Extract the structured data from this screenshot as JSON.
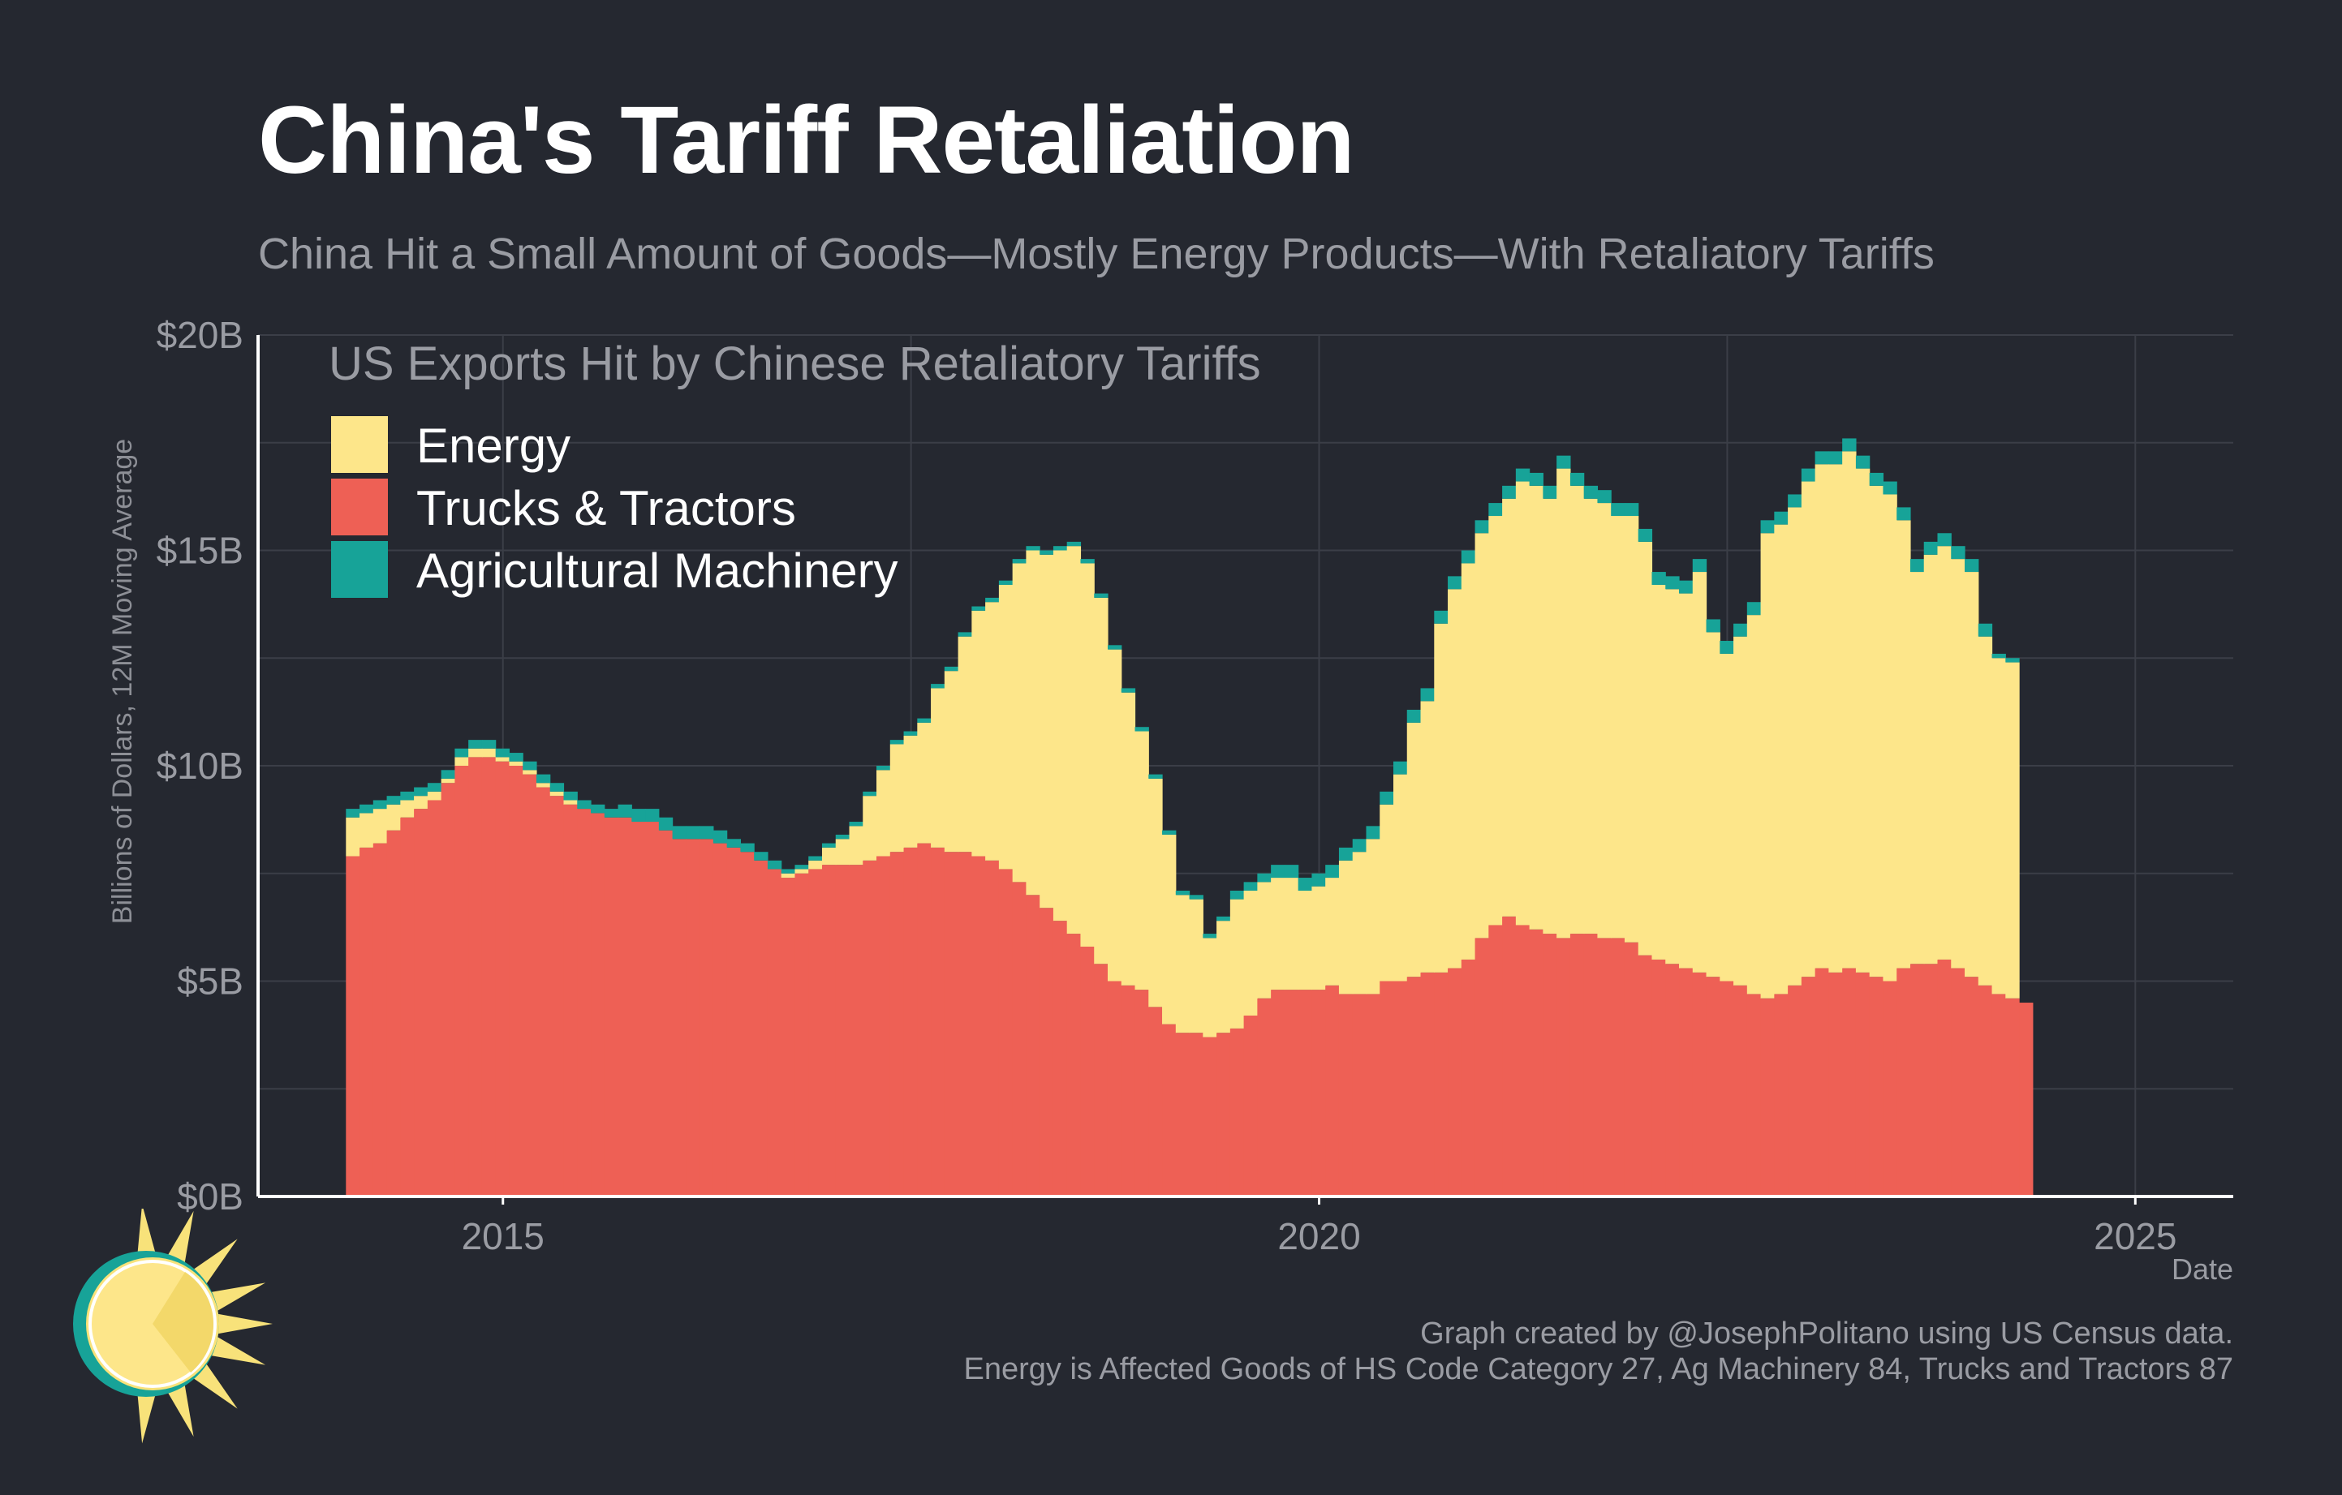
{
  "header": {
    "title": "China's Tariff Retaliation",
    "subtitle": "China Hit a Small Amount of Goods—Mostly Energy Products—With Retaliatory Tariffs"
  },
  "footer": {
    "credit": "Graph created by @JosephPolitano using US Census data.",
    "note": "Energy is Affected Goods of HS Code Category 27, Ag Machinery 84, Trucks and Tractors 87"
  },
  "logo": {
    "icon": "sun-logo-icon",
    "colors": {
      "sun": "#f8e27a",
      "ring": "#17a398"
    }
  },
  "chart_data": {
    "type": "bar",
    "stacked": true,
    "legend_title": "US Exports Hit by Chinese Retaliatory Tariffs",
    "legend_position": "top-left",
    "xlabel": "Date",
    "ylabel": "Billions of Dollars, 12M Moving Average",
    "ylim": [
      0,
      20
    ],
    "y_ticks": [
      0,
      5,
      10,
      15,
      20
    ],
    "y_tick_labels": [
      "$0B",
      "$5B",
      "$10B",
      "$15B",
      "$20B"
    ],
    "x_ticks": [
      2015,
      2020,
      2025
    ],
    "x_tick_labels": [
      "2015",
      "2020",
      "2025"
    ],
    "xlim": [
      2013.5,
      2025.6
    ],
    "grid": true,
    "x_start": 2014.08,
    "x_step": 0.08333,
    "colors": {
      "Energy": "#fde68a",
      "Trucks & Tractors": "#ee6055",
      "Agricultural Machinery": "#17a398"
    },
    "series": [
      {
        "name": "Trucks & Tractors",
        "values": [
          7.9,
          8.1,
          8.2,
          8.5,
          8.8,
          9.0,
          9.2,
          9.6,
          10.0,
          10.2,
          10.2,
          10.1,
          10.0,
          9.8,
          9.5,
          9.3,
          9.1,
          9.0,
          8.9,
          8.8,
          8.8,
          8.7,
          8.7,
          8.5,
          8.3,
          8.3,
          8.3,
          8.2,
          8.1,
          8.0,
          7.8,
          7.6,
          7.4,
          7.5,
          7.6,
          7.7,
          7.7,
          7.7,
          7.8,
          7.9,
          8.0,
          8.1,
          8.2,
          8.1,
          8.0,
          8.0,
          7.9,
          7.8,
          7.6,
          7.3,
          7.0,
          6.7,
          6.4,
          6.1,
          5.8,
          5.4,
          5.0,
          4.9,
          4.8,
          4.4,
          4.0,
          3.8,
          3.8,
          3.7,
          3.8,
          3.9,
          4.2,
          4.6,
          4.8,
          4.8,
          4.8,
          4.8,
          4.9,
          4.7,
          4.7,
          4.7,
          5.0,
          5.0,
          5.1,
          5.2,
          5.2,
          5.3,
          5.5,
          6.0,
          6.3,
          6.5,
          6.3,
          6.2,
          6.1,
          6.0,
          6.1,
          6.1,
          6.0,
          6.0,
          5.9,
          5.6,
          5.5,
          5.4,
          5.3,
          5.2,
          5.1,
          5.0,
          4.9,
          4.7,
          4.6,
          4.7,
          4.9,
          5.1,
          5.3,
          5.2,
          5.3,
          5.2,
          5.1,
          5.0,
          5.3,
          5.4,
          5.4,
          5.5,
          5.3,
          5.1,
          4.9,
          4.7,
          4.6,
          4.5
        ]
      },
      {
        "name": "Energy",
        "values": [
          0.9,
          0.8,
          0.8,
          0.6,
          0.4,
          0.3,
          0.2,
          0.1,
          0.2,
          0.2,
          0.2,
          0.1,
          0.1,
          0.1,
          0.1,
          0.1,
          0.1,
          0.0,
          0.0,
          0.0,
          0.0,
          0.0,
          0.0,
          0.0,
          0.0,
          0.0,
          0.0,
          0.0,
          0.0,
          0.0,
          0.0,
          0.0,
          0.1,
          0.1,
          0.2,
          0.4,
          0.6,
          0.9,
          1.5,
          2.0,
          2.5,
          2.6,
          2.8,
          3.7,
          4.2,
          5.0,
          5.7,
          6.0,
          6.6,
          7.4,
          8.0,
          8.2,
          8.6,
          9.0,
          8.9,
          8.5,
          7.7,
          6.8,
          6.0,
          5.3,
          4.4,
          3.2,
          3.1,
          2.3,
          2.6,
          3.0,
          2.9,
          2.7,
          2.6,
          2.6,
          2.3,
          2.4,
          2.5,
          3.1,
          3.3,
          3.6,
          4.1,
          4.8,
          5.9,
          6.3,
          8.1,
          8.8,
          9.2,
          9.4,
          9.5,
          9.7,
          10.3,
          10.3,
          10.1,
          10.9,
          10.4,
          10.1,
          10.1,
          9.8,
          9.9,
          9.6,
          8.7,
          8.7,
          8.7,
          9.3,
          8.0,
          7.6,
          8.1,
          8.8,
          10.8,
          10.9,
          11.1,
          11.5,
          11.7,
          11.8,
          12.0,
          11.7,
          11.4,
          11.3,
          10.4,
          9.1,
          9.5,
          9.6,
          9.5,
          9.4,
          8.1,
          7.8,
          7.8
        ]
      },
      {
        "name": "Agricultural Machinery",
        "values": [
          0.2,
          0.2,
          0.2,
          0.2,
          0.2,
          0.2,
          0.2,
          0.2,
          0.2,
          0.2,
          0.2,
          0.2,
          0.2,
          0.2,
          0.2,
          0.2,
          0.2,
          0.2,
          0.2,
          0.2,
          0.3,
          0.3,
          0.3,
          0.3,
          0.3,
          0.3,
          0.3,
          0.3,
          0.2,
          0.2,
          0.2,
          0.2,
          0.1,
          0.1,
          0.1,
          0.1,
          0.1,
          0.1,
          0.1,
          0.1,
          0.1,
          0.1,
          0.1,
          0.1,
          0.1,
          0.1,
          0.1,
          0.1,
          0.1,
          0.1,
          0.1,
          0.1,
          0.1,
          0.1,
          0.1,
          0.1,
          0.1,
          0.1,
          0.1,
          0.1,
          0.1,
          0.1,
          0.1,
          0.1,
          0.1,
          0.2,
          0.2,
          0.2,
          0.3,
          0.3,
          0.3,
          0.3,
          0.3,
          0.3,
          0.3,
          0.3,
          0.3,
          0.3,
          0.3,
          0.3,
          0.3,
          0.3,
          0.3,
          0.3,
          0.3,
          0.3,
          0.3,
          0.3,
          0.3,
          0.3,
          0.3,
          0.3,
          0.3,
          0.3,
          0.3,
          0.3,
          0.3,
          0.3,
          0.3,
          0.3,
          0.3,
          0.3,
          0.3,
          0.3,
          0.3,
          0.3,
          0.3,
          0.3,
          0.3,
          0.3,
          0.3,
          0.3,
          0.3,
          0.3,
          0.3,
          0.3,
          0.3,
          0.3,
          0.3,
          0.3,
          0.3,
          0.1,
          0.1,
          0.1
        ]
      }
    ]
  }
}
